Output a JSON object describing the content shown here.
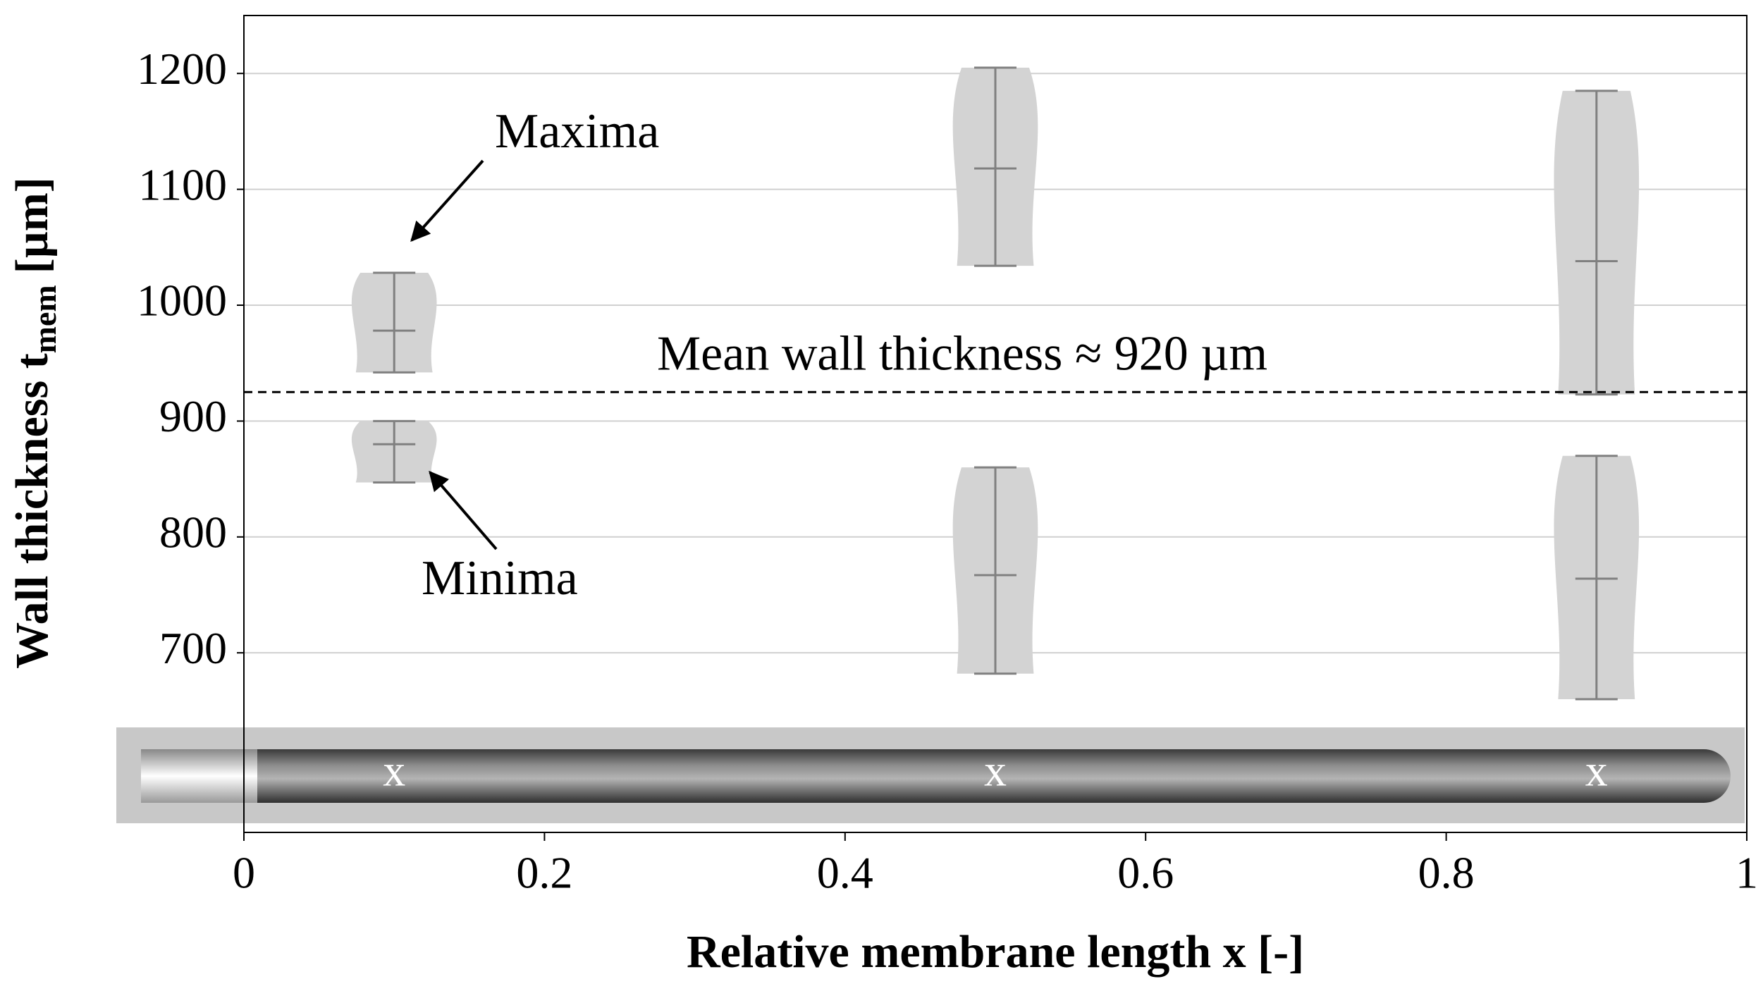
{
  "chart_data": {
    "type": "violin",
    "xlabel": "Relative membrane length x [-]",
    "ylabel": {
      "text": "Wall thickness t",
      "sub": "mem",
      "unit": "[µm]"
    },
    "xlim": [
      0,
      1
    ],
    "xticks": [
      0,
      0.2,
      0.4,
      0.6,
      0.8,
      1
    ],
    "ylim": [
      545,
      1250
    ],
    "yticks": [
      700,
      800,
      900,
      1000,
      1100,
      1200
    ],
    "grid": true,
    "color": "#d3d3d3",
    "line_color": "#808080",
    "violins": [
      {
        "x": 0.1,
        "min": 942,
        "max": 1028,
        "mean": 978
      },
      {
        "x": 0.1,
        "min": 847,
        "max": 900,
        "mean": 880
      },
      {
        "x": 0.5,
        "min": 1034,
        "max": 1205,
        "mean": 1118
      },
      {
        "x": 0.5,
        "min": 682,
        "max": 860,
        "mean": 767
      },
      {
        "x": 0.9,
        "min": 923,
        "max": 1185,
        "mean": 1038
      },
      {
        "x": 0.9,
        "min": 660,
        "max": 870,
        "mean": 764
      }
    ],
    "mean_line": {
      "value": 925,
      "label": "Mean wall thickness ≈ 920 µm"
    },
    "annotations": [
      {
        "text": "Maxima"
      },
      {
        "text": "Minima"
      }
    ],
    "photo_markers": [
      {
        "x": 0.1,
        "label": "x"
      },
      {
        "x": 0.5,
        "label": "x"
      },
      {
        "x": 0.9,
        "label": "x"
      }
    ]
  }
}
